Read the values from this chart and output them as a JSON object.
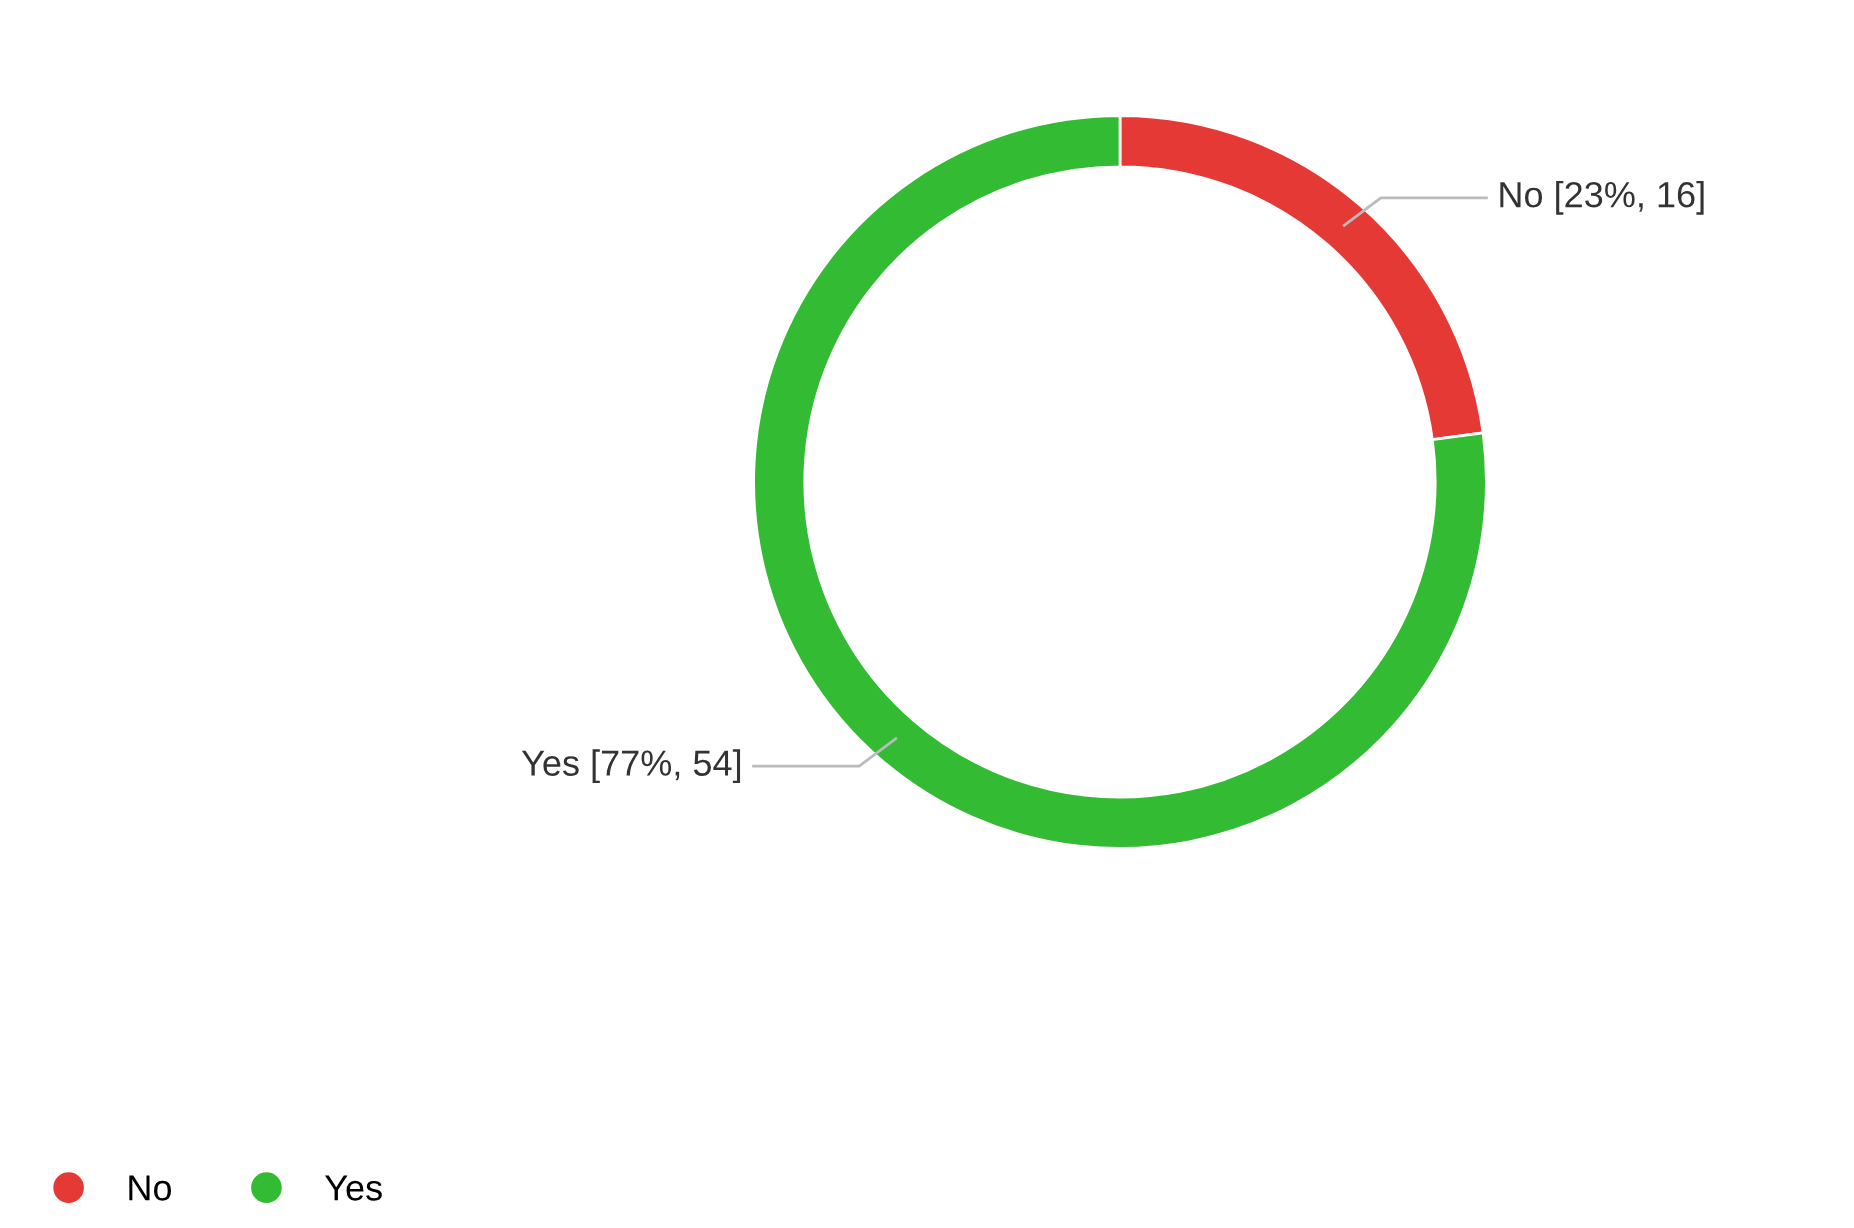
{
  "chart_data": {
    "type": "donut",
    "categories": [
      "No",
      "Yes"
    ],
    "values": [
      16,
      54
    ],
    "colors": [
      "#e53935",
      "#33bb33"
    ],
    "value_labels": [
      "No [23%, 16]",
      "Yes [77%, 54]"
    ],
    "legend": "bottom left"
  }
}
